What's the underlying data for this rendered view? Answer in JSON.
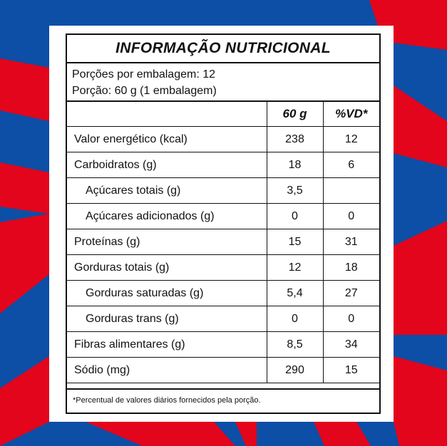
{
  "colors": {
    "background_blue": "#0d4ea6",
    "accent_red": "#e3051b",
    "panel_white": "#ffffff",
    "text": "#111111"
  },
  "label": {
    "title": "INFORMAÇÃO NUTRICIONAL",
    "servings_per_package": "Porções por embalagem: 12",
    "serving_size": "Porção: 60 g (1 embalagem)",
    "columns": [
      "",
      "60 g",
      "%VD*"
    ],
    "rows": [
      {
        "name": "Valor energético (kcal)",
        "amount": "238",
        "dv": "12",
        "indent": false
      },
      {
        "name": "Carboidratos (g)",
        "amount": "18",
        "dv": "6",
        "indent": false
      },
      {
        "name": "Açúcares totais (g)",
        "amount": "3,5",
        "dv": "",
        "indent": true
      },
      {
        "name": "Açúcares adicionados (g)",
        "amount": "0",
        "dv": "0",
        "indent": true
      },
      {
        "name": "Proteínas (g)",
        "amount": "15",
        "dv": "31",
        "indent": false
      },
      {
        "name": "Gorduras totais (g)",
        "amount": "12",
        "dv": "18",
        "indent": false
      },
      {
        "name": "Gorduras saturadas (g)",
        "amount": "5,4",
        "dv": "27",
        "indent": true
      },
      {
        "name": "Gorduras trans (g)",
        "amount": "0",
        "dv": "0",
        "indent": true
      },
      {
        "name": "Fibras alimentares (g)",
        "amount": "8,5",
        "dv": "34",
        "indent": false
      },
      {
        "name": "Sódio (mg)",
        "amount": "290",
        "dv": "15",
        "indent": false
      }
    ],
    "footnote": "*Percentual de valores diários fornecidos pela porção."
  }
}
